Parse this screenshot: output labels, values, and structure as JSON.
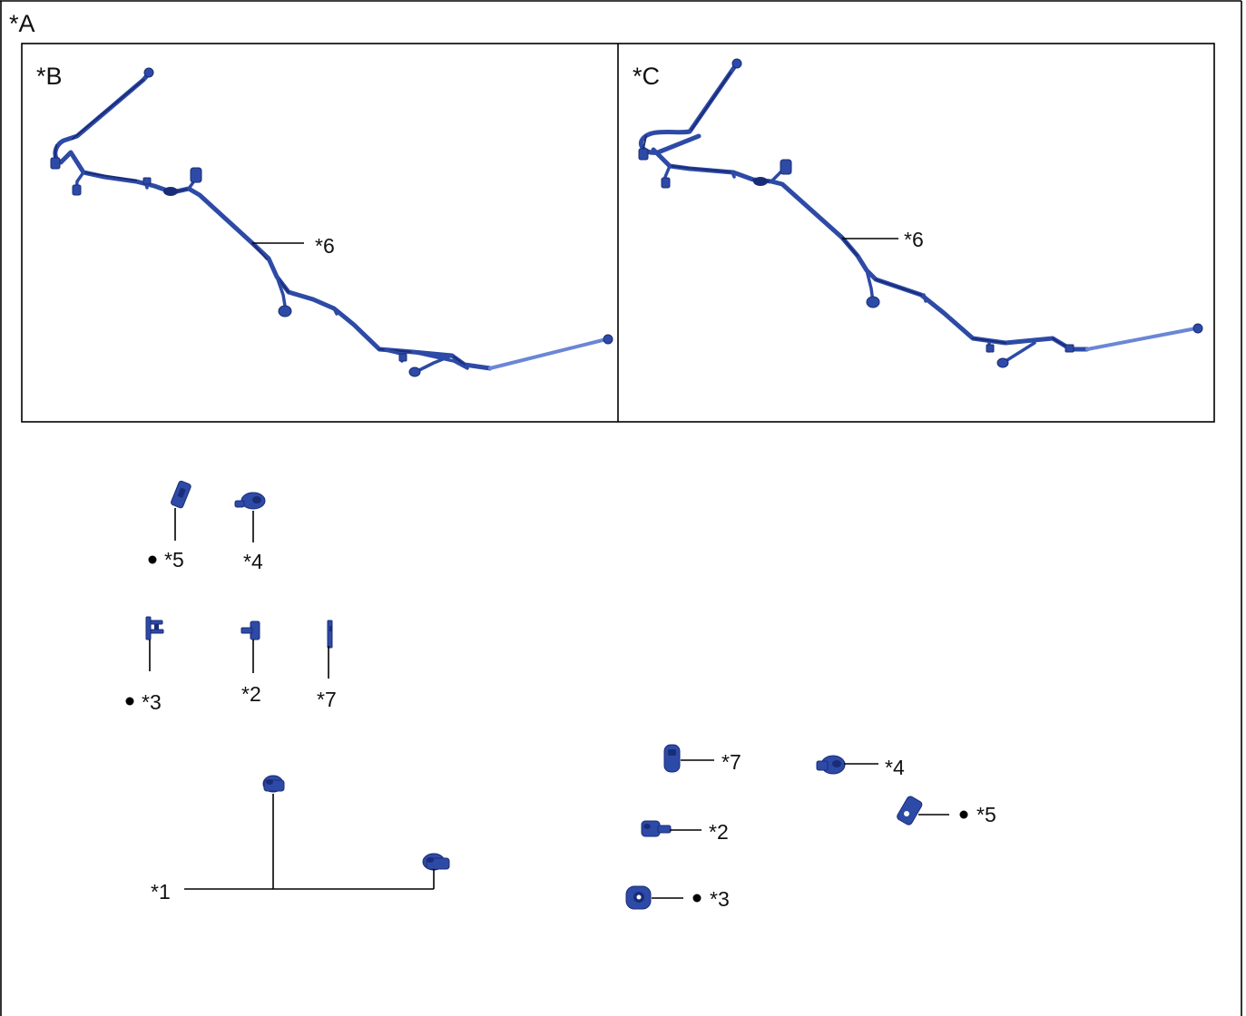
{
  "figure": {
    "frame_label": "*A",
    "panel_b": {
      "label": "*B",
      "callout": "*6"
    },
    "panel_c": {
      "label": "*C",
      "callout": "*6"
    },
    "left_parts": {
      "p5": "*5",
      "p4": "*4",
      "p3": "*3",
      "p2": "*2",
      "p7": "*7",
      "p1": "*1"
    },
    "right_parts": {
      "p7": "*7",
      "p4": "*4",
      "p5": "*5",
      "p2": "*2",
      "p3": "*3"
    }
  },
  "markers": {
    "bullet": "filled-circle-icon"
  },
  "colors": {
    "harness": "#2d4aa6",
    "harness_dark": "#1a2c78",
    "harness_light": "#6a86d6",
    "line": "#000000",
    "background": "#ffffff"
  }
}
